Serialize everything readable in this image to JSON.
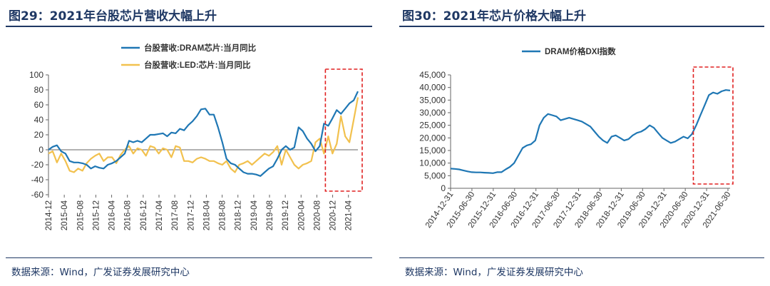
{
  "left": {
    "title": "图29：2021年台股芯片营收大幅上升",
    "source": "数据来源：Wind，广发证券发展研究中心",
    "chart_data": {
      "type": "line",
      "title": "",
      "xlabel": "",
      "ylabel": "",
      "ylim": [
        -60,
        100
      ],
      "yticks": [
        -60,
        -40,
        -20,
        0,
        20,
        40,
        60,
        80,
        100
      ],
      "x_tick_labels": [
        "2014-12",
        "2015-04",
        "2015-08",
        "2015-12",
        "2016-04",
        "2016-08",
        "2016-12",
        "2017-04",
        "2017-08",
        "2017-12",
        "2018-04",
        "2018-08",
        "2018-12",
        "2019-04",
        "2019-08",
        "2019-12",
        "2020-04",
        "2020-08",
        "2020-12",
        "2021-04"
      ],
      "x_start": "2014-12",
      "legend_position": "top",
      "grid": false,
      "highlight": {
        "from": "2020-11",
        "to": "2021-06",
        "style": "red dashed box"
      },
      "series": [
        {
          "name": "台股营收:DRAM芯片:当月同比",
          "color": "#1f77b4",
          "values": [
            0,
            4,
            6,
            -2,
            -5,
            -15,
            -17,
            -17,
            -18,
            -20,
            -25,
            -22,
            -24,
            -25,
            -20,
            -18,
            -15,
            -10,
            -5,
            12,
            10,
            12,
            10,
            15,
            20,
            20,
            21,
            22,
            18,
            23,
            22,
            28,
            26,
            33,
            38,
            45,
            54,
            55,
            47,
            47,
            30,
            10,
            -12,
            -18,
            -20,
            -25,
            -30,
            -32,
            -32,
            -33,
            -35,
            -30,
            -25,
            -22,
            -12,
            0,
            5,
            0,
            3,
            30,
            25,
            15,
            8,
            -2,
            5,
            35,
            32,
            42,
            53,
            48,
            55,
            62,
            66,
            78
          ]
        },
        {
          "name": "台股营收:LED:芯片:当月同比",
          "color": "#f2c14e",
          "values": [
            -5,
            -2,
            -17,
            -5,
            -15,
            -28,
            -30,
            -25,
            -28,
            -18,
            -12,
            -8,
            -5,
            -15,
            -10,
            -10,
            -18,
            -7,
            0,
            5,
            -5,
            2,
            0,
            -8,
            5,
            3,
            -5,
            2,
            0,
            -10,
            5,
            3,
            -15,
            -15,
            -17,
            -12,
            -10,
            -12,
            -15,
            -15,
            -18,
            -20,
            -15,
            -25,
            -30,
            -20,
            -18,
            -15,
            -20,
            -15,
            -10,
            -5,
            -8,
            -3,
            5,
            -20,
            0,
            -10,
            -20,
            -25,
            -20,
            -18,
            -15,
            10,
            15,
            -5,
            18,
            -5,
            8,
            45,
            18,
            10,
            40,
            70
          ]
        }
      ]
    }
  },
  "right": {
    "title": "图30：2021年芯片价格大幅上升",
    "source": "数据来源：Wind，广发证券发展研究中心",
    "chart_data": {
      "type": "line",
      "title": "",
      "xlabel": "",
      "ylabel": "",
      "ylim": [
        0,
        45000
      ],
      "yticks": [
        0,
        5000,
        10000,
        15000,
        20000,
        25000,
        30000,
        35000,
        40000,
        45000
      ],
      "ytick_labels": [
        "0",
        "5,000",
        "10,000",
        "15,000",
        "20,000",
        "25,000",
        "30,000",
        "35,000",
        "40,000",
        "45,000"
      ],
      "x_tick_labels": [
        "2014-12-31",
        "2015-06-30",
        "2015-12-31",
        "2016-06-30",
        "2016-12-31",
        "2017-06-30",
        "2017-12-31",
        "2018-06-30",
        "2018-12-31",
        "2019-06-30",
        "2019-12-31",
        "2020-06-30",
        "2020-12-31",
        "2021-06-30"
      ],
      "legend_position": "top",
      "grid": false,
      "highlight": {
        "from": "2020-12-31",
        "to": "2021-06-30",
        "style": "red dashed box"
      },
      "series": [
        {
          "name": "DRAM价格DXI指数",
          "color": "#1f77b4",
          "values": [
            7800,
            7700,
            7500,
            7100,
            6700,
            6400,
            6300,
            6300,
            6200,
            6100,
            6000,
            6400,
            6400,
            7500,
            8500,
            10000,
            13000,
            16000,
            17000,
            17500,
            19000,
            25000,
            28000,
            29500,
            29000,
            28500,
            27000,
            27500,
            28000,
            27500,
            27000,
            26500,
            25500,
            24500,
            22500,
            20500,
            19000,
            18000,
            20500,
            21000,
            20000,
            19000,
            19500,
            21000,
            22000,
            22500,
            23500,
            25000,
            24000,
            22000,
            20000,
            19000,
            18000,
            18500,
            19500,
            20500,
            19800,
            21500,
            25000,
            29000,
            33000,
            37000,
            38000,
            37500,
            38500,
            39000,
            38800
          ]
        }
      ]
    }
  }
}
